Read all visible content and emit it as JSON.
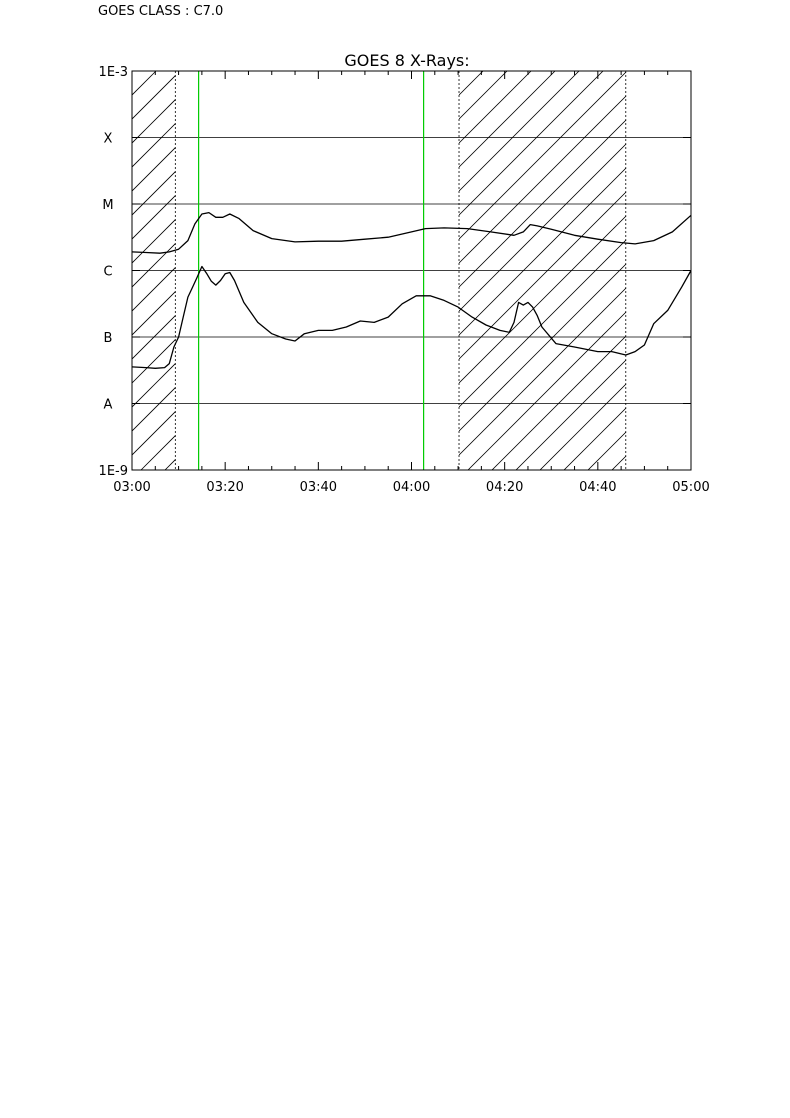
{
  "header": {
    "class_text": "GOES CLASS : C7.0"
  },
  "chart_data": {
    "type": "line",
    "title": "GOES 8 X-Rays:",
    "xlabel": "",
    "ylabel": "",
    "x_ticks": [
      "03:00",
      "03:20",
      "03:40",
      "04:00",
      "04:20",
      "04:40",
      "05:00"
    ],
    "x_range_minutes": [
      0,
      120
    ],
    "y_scale": "log",
    "y_range_exp": [
      -9,
      -3
    ],
    "y_tick_labels": [
      {
        "exp": -9,
        "label": "1E-9"
      },
      {
        "exp": -8,
        "label": "A"
      },
      {
        "exp": -7,
        "label": "B"
      },
      {
        "exp": -6,
        "label": "C"
      },
      {
        "exp": -5,
        "label": "M"
      },
      {
        "exp": -4,
        "label": "X"
      },
      {
        "exp": -3,
        "label": "1E-3"
      }
    ],
    "grid": "horizontal",
    "hatched_intervals": [
      {
        "start": 0,
        "end": 9.3
      },
      {
        "start": 70.2,
        "end": 106
      }
    ],
    "markers": [
      {
        "t": 14.3,
        "color": "#00cc00"
      },
      {
        "t": 62.6,
        "color": "#00cc00"
      }
    ],
    "series": [
      {
        "color": "#000000",
        "t": [
          0,
          3,
          6,
          8,
          10,
          12,
          13.5,
          15,
          16.5,
          18,
          19.5,
          21,
          23,
          26,
          30,
          35,
          40,
          45,
          50,
          55,
          60,
          63,
          67,
          72,
          77,
          82,
          84,
          85.5,
          87,
          90,
          95,
          100,
          105,
          108,
          112,
          116,
          120
        ],
        "exp": [
          -5.72,
          -5.73,
          -5.74,
          -5.72,
          -5.68,
          -5.55,
          -5.3,
          -5.15,
          -5.13,
          -5.2,
          -5.2,
          -5.15,
          -5.22,
          -5.4,
          -5.52,
          -5.57,
          -5.56,
          -5.56,
          -5.53,
          -5.5,
          -5.42,
          -5.37,
          -5.36,
          -5.37,
          -5.42,
          -5.47,
          -5.42,
          -5.31,
          -5.33,
          -5.38,
          -5.47,
          -5.53,
          -5.58,
          -5.6,
          -5.55,
          -5.42,
          -5.17
        ]
      },
      {
        "color": "#000000",
        "t": [
          0,
          3,
          5,
          7,
          8,
          9,
          10,
          11,
          12,
          13,
          14,
          15,
          16,
          17,
          18,
          19,
          20,
          21,
          22,
          24,
          27,
          30,
          33,
          35,
          37,
          40,
          43,
          46,
          49,
          52,
          55,
          58,
          61,
          64,
          67,
          70,
          73,
          76,
          79,
          81,
          82,
          83,
          84,
          85,
          86,
          87,
          88,
          91,
          95,
          100,
          103,
          106,
          108,
          110,
          112,
          115,
          118,
          120
        ],
        "exp": [
          -7.45,
          -7.46,
          -7.47,
          -7.46,
          -7.4,
          -7.15,
          -7.0,
          -6.7,
          -6.4,
          -6.25,
          -6.1,
          -5.94,
          -6.04,
          -6.16,
          -6.22,
          -6.15,
          -6.05,
          -6.03,
          -6.15,
          -6.48,
          -6.78,
          -6.95,
          -7.03,
          -7.06,
          -6.95,
          -6.9,
          -6.9,
          -6.85,
          -6.76,
          -6.78,
          -6.7,
          -6.5,
          -6.38,
          -6.38,
          -6.45,
          -6.55,
          -6.7,
          -6.82,
          -6.9,
          -6.93,
          -6.78,
          -6.48,
          -6.52,
          -6.48,
          -6.55,
          -6.68,
          -6.85,
          -7.1,
          -7.15,
          -7.22,
          -7.22,
          -7.27,
          -7.22,
          -7.12,
          -6.8,
          -6.6,
          -6.25,
          -6.0
        ]
      }
    ]
  }
}
